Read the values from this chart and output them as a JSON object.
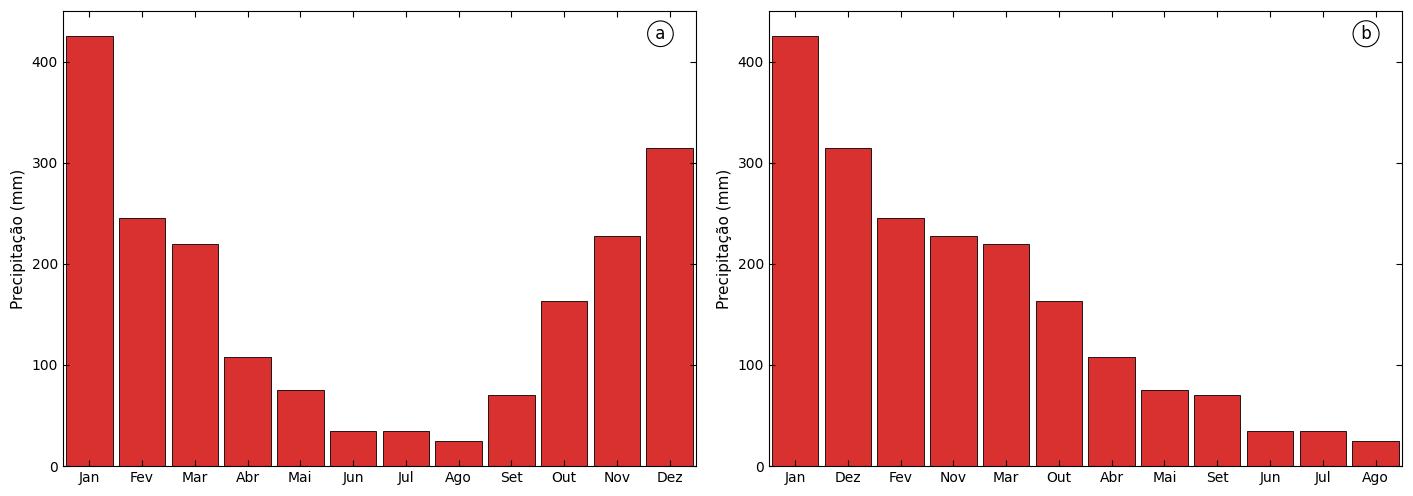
{
  "chart_a": {
    "categories": [
      "Jan",
      "Fev",
      "Mar",
      "Abr",
      "Mai",
      "Jun",
      "Jul",
      "Ago",
      "Set",
      "Out",
      "Nov",
      "Dez"
    ],
    "values": [
      425,
      245,
      220,
      108,
      75,
      35,
      35,
      25,
      70,
      163,
      228,
      315
    ],
    "ylabel": "Precipitação (mm)",
    "label": "a"
  },
  "chart_b": {
    "categories": [
      "Jan",
      "Dez",
      "Fev",
      "Nov",
      "Mar",
      "Out",
      "Abr",
      "Mai",
      "Set",
      "Jun",
      "Jul",
      "Ago"
    ],
    "values": [
      425,
      315,
      245,
      228,
      220,
      163,
      108,
      75,
      70,
      35,
      35,
      25
    ],
    "ylabel": "Precipitação (mm)",
    "label": "b"
  },
  "bar_color": "#D93030",
  "bar_edgecolor": "#000000",
  "ylim": [
    0,
    450
  ],
  "yticks": [
    0,
    100,
    200,
    300,
    400
  ],
  "background_color": "#ffffff",
  "tick_fontsize": 10,
  "ylabel_fontsize": 11,
  "label_fontsize": 12,
  "bar_width": 0.88
}
